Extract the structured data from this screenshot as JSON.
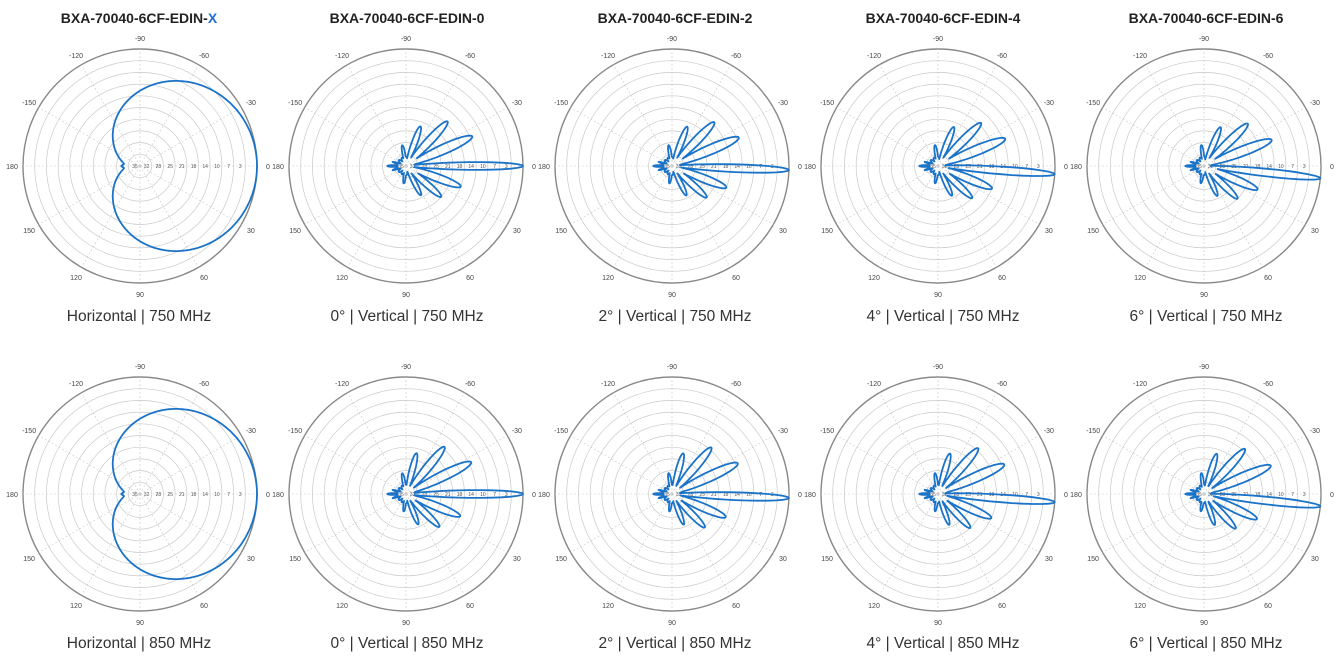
{
  "colors": {
    "pattern": "#1a73c8",
    "grid": "#c9c9c9",
    "outer": "#888888",
    "text": "#333333",
    "accent": "#1f6fd0"
  },
  "columns": [
    {
      "model": "BXA-70040-6CF-EDIN-",
      "suffix": "X"
    },
    {
      "model": "BXA-70040-6CF-EDIN-0",
      "suffix": ""
    },
    {
      "model": "BXA-70040-6CF-EDIN-2",
      "suffix": ""
    },
    {
      "model": "BXA-70040-6CF-EDIN-4",
      "suffix": ""
    },
    {
      "model": "BXA-70040-6CF-EDIN-6",
      "suffix": ""
    }
  ],
  "chart_data": [
    {
      "type": "polar",
      "kind": "horizontal",
      "tilt_deg": null,
      "caption": "Horizontal |  750 MHz"
    },
    {
      "type": "polar",
      "kind": "vertical",
      "tilt_deg": 0,
      "caption": "0°  |  Vertical |  750 MHz"
    },
    {
      "type": "polar",
      "kind": "vertical",
      "tilt_deg": 2,
      "caption": "2°  |  Vertical |  750 MHz"
    },
    {
      "type": "polar",
      "kind": "vertical",
      "tilt_deg": 4,
      "caption": "4°  |  Vertical |  750 MHz"
    },
    {
      "type": "polar",
      "kind": "vertical",
      "tilt_deg": 6,
      "caption": "6°  |  Vertical |  750 MHz"
    },
    {
      "type": "polar",
      "kind": "horizontal",
      "tilt_deg": null,
      "caption": "Horizontal |  850 MHz"
    },
    {
      "type": "polar",
      "kind": "vertical",
      "tilt_deg": 0,
      "caption": "0°  |  Vertical |  850 MHz"
    },
    {
      "type": "polar",
      "kind": "vertical",
      "tilt_deg": 2,
      "caption": "2°  |  Vertical |  850 MHz"
    },
    {
      "type": "polar",
      "kind": "vertical",
      "tilt_deg": 4,
      "caption": "4°  |  Vertical |  850 MHz"
    },
    {
      "type": "polar",
      "kind": "vertical",
      "tilt_deg": 6,
      "caption": "6°  |  Vertical |  850 MHz"
    }
  ],
  "angle_labels": [
    "0",
    "30",
    "60",
    "90",
    "120",
    "150",
    "180",
    "-150",
    "-120",
    "-90",
    "-60",
    "-30"
  ],
  "radial_labels": [
    "3",
    "7",
    "10",
    "14",
    "18",
    "21",
    "25",
    "28",
    "32",
    "35"
  ]
}
